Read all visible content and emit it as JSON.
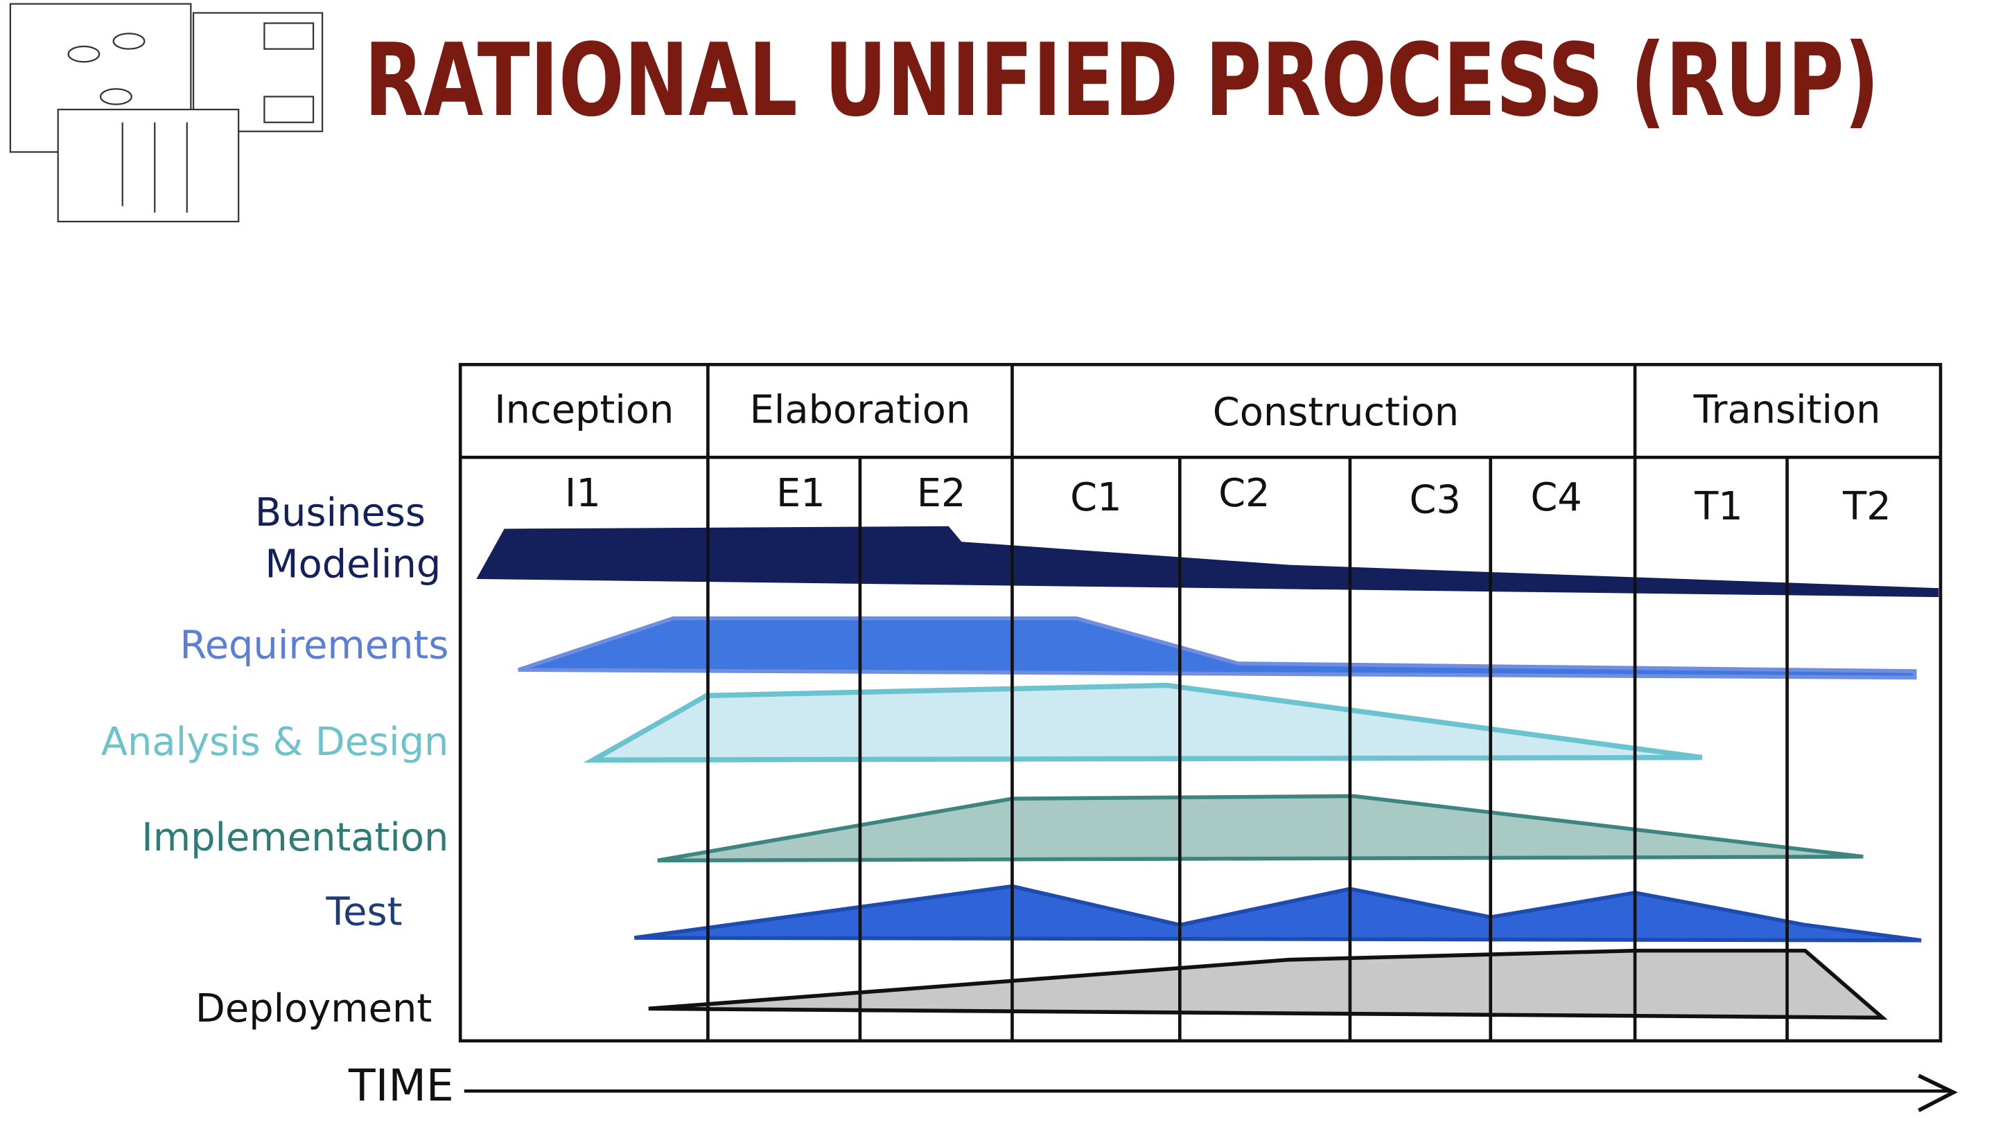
{
  "title": "RATIONAL UNIFIED PROCESS (RUP)",
  "phases": [
    "Inception",
    "Elaboration",
    "Construction",
    "Transition"
  ],
  "iterations": [
    "I1",
    "E1",
    "E2",
    "C1",
    "C2",
    "C3",
    "C4",
    "T1",
    "T2"
  ],
  "disciplines": [
    {
      "lines": [
        "Business",
        "Modeling"
      ]
    },
    {
      "lines": [
        "Requirements"
      ]
    },
    {
      "lines": [
        "Analysis & Design"
      ]
    },
    {
      "lines": [
        "Implementation"
      ]
    },
    {
      "lines": [
        "Test"
      ]
    },
    {
      "lines": [
        "Deployment"
      ]
    }
  ],
  "time_label": "TIME"
}
